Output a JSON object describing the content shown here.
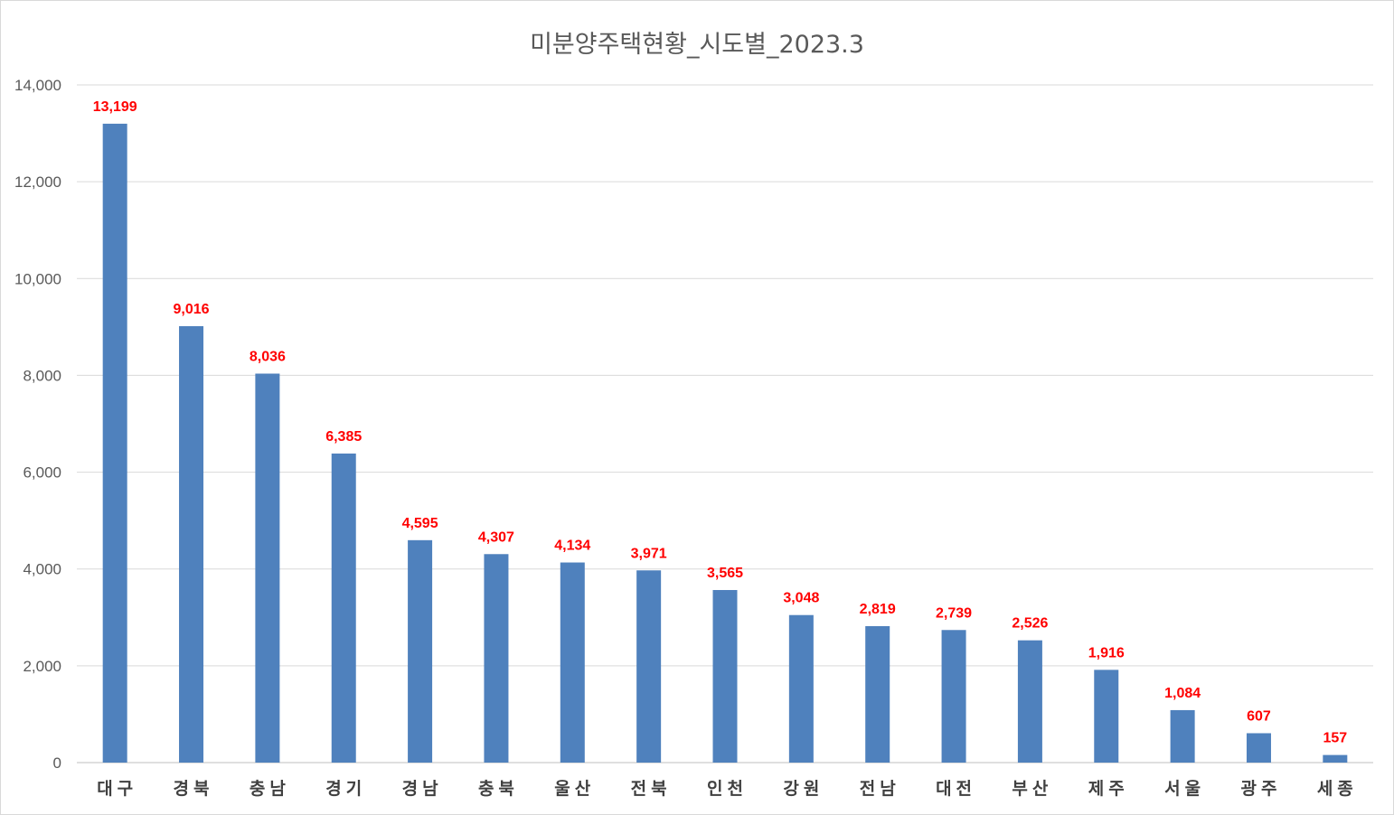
{
  "chart_data": {
    "type": "bar",
    "title": "미분양주택현황_시도별_2023.3",
    "xlabel": "",
    "ylabel": "",
    "categories": [
      "대구",
      "경북",
      "충남",
      "경기",
      "경남",
      "충북",
      "울산",
      "전북",
      "인천",
      "강원",
      "전남",
      "대전",
      "부산",
      "제주",
      "서울",
      "광주",
      "세종"
    ],
    "values": [
      13199,
      9016,
      8036,
      6385,
      4595,
      4307,
      4134,
      3971,
      3565,
      3048,
      2819,
      2739,
      2526,
      1916,
      1084,
      607,
      157
    ],
    "value_labels": [
      "13,199",
      "9,016",
      "8,036",
      "6,385",
      "4,595",
      "4,307",
      "4,134",
      "3,971",
      "3,565",
      "3,048",
      "2,819",
      "2,739",
      "2,526",
      "1,916",
      "1,084",
      "607",
      "157"
    ],
    "ylim": [
      0,
      14000
    ],
    "yticks": [
      0,
      2000,
      4000,
      6000,
      8000,
      10000,
      12000,
      14000
    ],
    "ytick_labels": [
      "0",
      "2,000",
      "4,000",
      "6,000",
      "8,000",
      "10,000",
      "12,000",
      "14,000"
    ],
    "grid": true,
    "legend": "none",
    "colors": {
      "bar": "#4f81bd",
      "data_label": "#ff0000"
    }
  }
}
